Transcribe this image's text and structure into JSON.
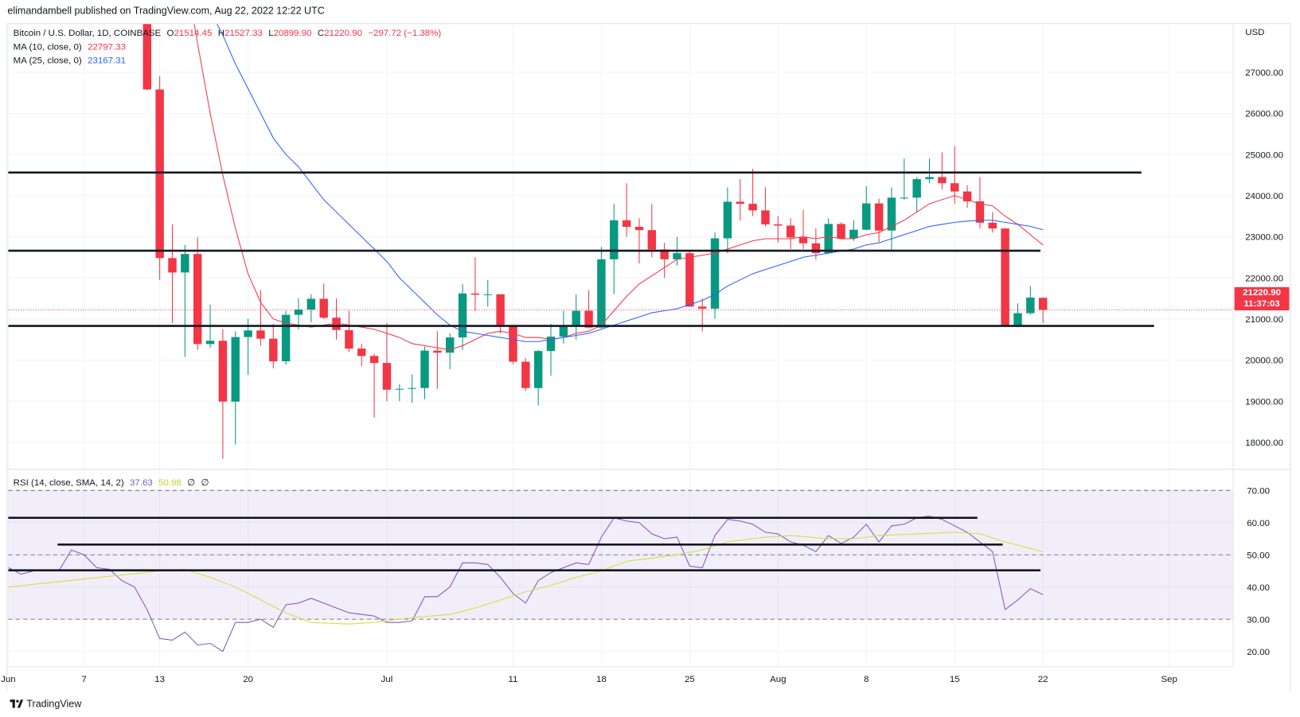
{
  "header": {
    "published": "elimandambell published on TradingView.com, Aug 22, 2022 12:22 UTC"
  },
  "legend": {
    "symbol": "Bitcoin / U.S. Dollar, 1D, COINBASE",
    "o_label": "O",
    "o": "21514.45",
    "h_label": "H",
    "h": "21527.33",
    "l_label": "L",
    "l": "20899.90",
    "c_label": "C",
    "c": "21220.90",
    "change": "−297.72 (−1.38%)",
    "ma10_label": "MA (10, close, 0)",
    "ma10": "22797.33",
    "ma25_label": "MA (25, close, 0)",
    "ma25": "23167.31",
    "rsi_label": "RSI (14, close, SMA, 14, 2)",
    "rsi": "37.63",
    "rsi_sma": "50.98",
    "rsi_extra1": "∅",
    "rsi_extra2": "∅"
  },
  "price_tag": {
    "price": "21220.90",
    "countdown": "11:37:03"
  },
  "branding": {
    "logo_text": "TradingView"
  },
  "colors": {
    "up": "#089981",
    "down": "#f23645",
    "ma10": "#f23645",
    "ma25": "#2962ff",
    "rsi": "#7e57c2",
    "rsi_sma": "#d4df3c"
  },
  "chart_data": {
    "type": "candlestick",
    "currency": "USD",
    "price_ticks": [
      "18000.00",
      "19000.00",
      "20000.00",
      "21000.00",
      "22000.00",
      "23000.00",
      "24000.00",
      "25000.00",
      "26000.00",
      "27000.00"
    ],
    "price_tick_values": [
      18000,
      19000,
      20000,
      21000,
      22000,
      23000,
      24000,
      25000,
      26000,
      27000
    ],
    "time_ticks": [
      {
        "label": "Jun",
        "day": 0
      },
      {
        "label": "7",
        "day": 6
      },
      {
        "label": "13",
        "day": 12
      },
      {
        "label": "20",
        "day": 19
      },
      {
        "label": "Jul",
        "day": 30
      },
      {
        "label": "11",
        "day": 40
      },
      {
        "label": "18",
        "day": 47
      },
      {
        "label": "25",
        "day": 54
      },
      {
        "label": "Aug",
        "day": 61
      },
      {
        "label": "8",
        "day": 68
      },
      {
        "label": "15",
        "day": 75
      },
      {
        "label": "22",
        "day": 82
      },
      {
        "label": "Sep",
        "day": 92
      }
    ],
    "candles_first_day": 11,
    "candles": [
      [
        28400,
        28550,
        26560,
        26580
      ],
      [
        26580,
        26900,
        21950,
        22480
      ],
      [
        22480,
        23300,
        20900,
        22130
      ],
      [
        22130,
        22800,
        20080,
        22580
      ],
      [
        22580,
        22990,
        20250,
        20390
      ],
      [
        20390,
        21350,
        20300,
        20470
      ],
      [
        20470,
        20750,
        17600,
        18990
      ],
      [
        18990,
        20700,
        17950,
        20560
      ],
      [
        20560,
        21000,
        19640,
        20720
      ],
      [
        20720,
        21700,
        20350,
        20520
      ],
      [
        20520,
        20880,
        19800,
        19970
      ],
      [
        19970,
        21200,
        19890,
        21100
      ],
      [
        21100,
        21500,
        20750,
        21230
      ],
      [
        21230,
        21600,
        20920,
        21490
      ],
      [
        21490,
        21860,
        21000,
        21030
      ],
      [
        21030,
        21500,
        20500,
        20730
      ],
      [
        20730,
        21200,
        20200,
        20280
      ],
      [
        20280,
        20400,
        19850,
        20100
      ],
      [
        20100,
        20150,
        18600,
        19930
      ],
      [
        19930,
        20900,
        19000,
        19280
      ],
      [
        19280,
        19420,
        19000,
        19300
      ],
      [
        19300,
        19650,
        18960,
        19320
      ],
      [
        19320,
        20330,
        19050,
        20230
      ],
      [
        20230,
        20700,
        19300,
        20180
      ],
      [
        20180,
        20650,
        19780,
        20550
      ],
      [
        20550,
        21850,
        20250,
        21620
      ],
      [
        21620,
        22500,
        21200,
        21590
      ],
      [
        21590,
        21950,
        21300,
        21600
      ],
      [
        21600,
        21600,
        20650,
        20850
      ],
      [
        20850,
        20850,
        19900,
        19960
      ],
      [
        19960,
        20050,
        19250,
        19320
      ],
      [
        19320,
        20250,
        18900,
        20220
      ],
      [
        20220,
        20880,
        19620,
        20570
      ],
      [
        20570,
        21200,
        20400,
        20830
      ],
      [
        20830,
        21600,
        20500,
        21200
      ],
      [
        21200,
        21700,
        20770,
        20790
      ],
      [
        20790,
        22750,
        20770,
        22450
      ],
      [
        22450,
        23800,
        21600,
        23400
      ],
      [
        23400,
        24300,
        23000,
        23240
      ],
      [
        23240,
        23450,
        22350,
        23160
      ],
      [
        23160,
        23800,
        22500,
        22690
      ],
      [
        22690,
        22850,
        22000,
        22450
      ],
      [
        22450,
        23000,
        22300,
        22600
      ],
      [
        22600,
        22650,
        21300,
        21300
      ],
      [
        21300,
        21500,
        20700,
        21250
      ],
      [
        21250,
        23100,
        21000,
        22960
      ],
      [
        22960,
        24200,
        22600,
        23850
      ],
      [
        23850,
        24400,
        23400,
        23800
      ],
      [
        23800,
        24650,
        23500,
        23640
      ],
      [
        23640,
        24200,
        23250,
        23300
      ],
      [
        23300,
        23500,
        22850,
        23270
      ],
      [
        23270,
        23450,
        22700,
        22980
      ],
      [
        22980,
        23650,
        22700,
        22840
      ],
      [
        22840,
        23200,
        22450,
        22600
      ],
      [
        22600,
        23450,
        22600,
        23310
      ],
      [
        23310,
        23350,
        22950,
        22960
      ],
      [
        22960,
        23400,
        22900,
        23170
      ],
      [
        23170,
        24230,
        23150,
        23810
      ],
      [
        23810,
        23920,
        22870,
        23150
      ],
      [
        23150,
        24200,
        22680,
        23950
      ],
      [
        23950,
        24900,
        23900,
        23950
      ],
      [
        23950,
        24450,
        23600,
        24400
      ],
      [
        24400,
        24900,
        24300,
        24450
      ],
      [
        24450,
        25050,
        24150,
        24300
      ],
      [
        24300,
        25200,
        23800,
        24100
      ],
      [
        24100,
        24250,
        23700,
        23860
      ],
      [
        23860,
        24450,
        23200,
        23340
      ],
      [
        23340,
        23600,
        23100,
        23200
      ],
      [
        23200,
        23200,
        20800,
        20830
      ],
      [
        20830,
        21380,
        20800,
        21140
      ],
      [
        21140,
        21800,
        21100,
        21520
      ],
      [
        21514.45,
        21527.33,
        20899.9,
        21220.9
      ]
    ],
    "ma10_first_day": 13,
    "ma10": [
      31000,
      29500,
      27700,
      26000,
      24500,
      23200,
      22100,
      21400,
      21000,
      20900,
      20850,
      20800,
      20850,
      20900,
      20850,
      20800,
      20750,
      20650,
      20550,
      20400,
      20350,
      20300,
      20250,
      20350,
      20500,
      20650,
      20700,
      20650,
      20550,
      20550,
      20500,
      20550,
      20650,
      20700,
      20850,
      21200,
      21550,
      21850,
      22050,
      22250,
      22450,
      22500,
      22550,
      22600,
      22700,
      22800,
      22900,
      22950,
      22950,
      22950,
      23000,
      22950,
      23000,
      22950,
      22950,
      23050,
      23100,
      23250,
      23400,
      23600,
      23800,
      23900,
      24000,
      23900,
      23800,
      23750,
      23500,
      23300,
      23050,
      22797.33
    ],
    "ma25_first_day": 16,
    "ma25": [
      28500,
      27900,
      27200,
      26600,
      26000,
      25400,
      25000,
      24700,
      24300,
      23900,
      23600,
      23300,
      23000,
      22700,
      22400,
      22000,
      21700,
      21400,
      21100,
      20850,
      20700,
      20650,
      20600,
      20550,
      20500,
      20450,
      20450,
      20500,
      20550,
      20600,
      20650,
      20750,
      20850,
      20950,
      21050,
      21150,
      21200,
      21250,
      21350,
      21450,
      21600,
      21800,
      21950,
      22100,
      22200,
      22300,
      22400,
      22500,
      22550,
      22600,
      22650,
      22700,
      22800,
      22850,
      22950,
      23050,
      23150,
      23250,
      23300,
      23350,
      23380,
      23400,
      23400,
      23350,
      23300,
      23250,
      23167.31
    ],
    "last_price": 21220.9,
    "horizontal_lines_price": [
      {
        "price": 24560,
        "from_day": 0,
        "to_day": 89.8
      },
      {
        "price": 22660,
        "from_day": 0,
        "to_day": 81.8
      },
      {
        "price": 20830,
        "from_day": 0,
        "to_day": 90.8
      }
    ],
    "rsi": {
      "ticks": [
        "20.00",
        "30.00",
        "40.00",
        "50.00",
        "60.00",
        "70.00"
      ],
      "tick_values": [
        20,
        30,
        40,
        50,
        60,
        70
      ],
      "band": [
        30,
        70
      ],
      "values": [
        46,
        44,
        45,
        45,
        45,
        51.5,
        50,
        46,
        45.5,
        42,
        40,
        33,
        24,
        23.5,
        26,
        22,
        22.5,
        20,
        29,
        29,
        30,
        27.5,
        34.5,
        35,
        36.5,
        35,
        33.5,
        32,
        31.5,
        31,
        29,
        29,
        29.5,
        37,
        37,
        40,
        47.5,
        47.5,
        47,
        43,
        38,
        35,
        42,
        44.5,
        46,
        47.5,
        47,
        55.5,
        61.5,
        60.5,
        60,
        56.5,
        55,
        55.5,
        46.5,
        46,
        56,
        61,
        60.5,
        59.5,
        57,
        56.5,
        54,
        53,
        51,
        56,
        53.5,
        55.5,
        59.5,
        54,
        59,
        59.5,
        61.5,
        62,
        61,
        59,
        57,
        54,
        51,
        33,
        36,
        39.5,
        37.63
      ],
      "sma_points": [
        [
          0,
          40
        ],
        [
          12,
          45
        ],
        [
          14,
          45.5
        ],
        [
          16,
          43
        ],
        [
          18,
          40
        ],
        [
          20,
          36
        ],
        [
          22,
          32
        ],
        [
          24,
          29
        ],
        [
          27,
          28.5
        ],
        [
          29,
          29
        ],
        [
          32,
          30.5
        ],
        [
          35,
          31.5
        ],
        [
          37,
          33.5
        ],
        [
          39,
          36
        ],
        [
          41,
          38.5
        ],
        [
          43,
          40.5
        ],
        [
          45,
          43
        ],
        [
          47,
          45
        ],
        [
          49,
          48
        ],
        [
          53,
          50
        ],
        [
          55,
          51.5
        ],
        [
          57,
          54
        ],
        [
          60,
          55.5
        ],
        [
          62,
          56
        ],
        [
          65,
          55
        ],
        [
          67,
          55
        ],
        [
          69,
          56
        ],
        [
          72,
          56.5
        ],
        [
          75,
          57
        ],
        [
          77,
          56.5
        ],
        [
          79,
          54
        ],
        [
          81,
          52
        ],
        [
          82,
          50.98
        ]
      ],
      "horizontal_lines": [
        {
          "value": 61.5,
          "from_day": 0,
          "to_day": 76.8
        },
        {
          "value": 53.2,
          "from_day": 3.9,
          "to_day": 78.8
        },
        {
          "value": 45.2,
          "from_day": 0,
          "to_day": 81.8
        }
      ]
    }
  }
}
